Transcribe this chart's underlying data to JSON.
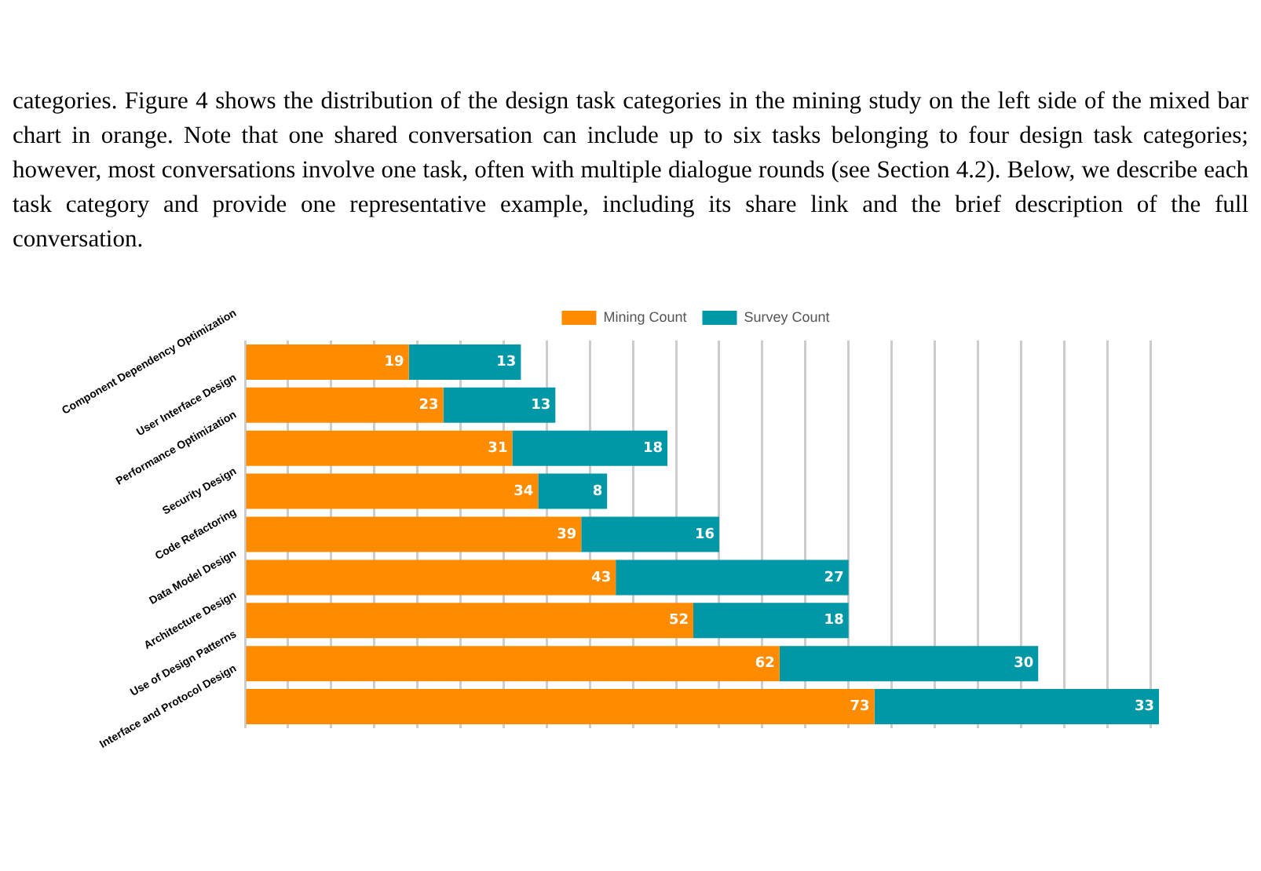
{
  "chart_data": {
    "type": "bar",
    "orientation": "horizontal",
    "stacked": true,
    "annotations": [
      "categories. Figure 4 shows the distribution of the design task categories in the mining study on the left side of the mixed bar chart in orange. Note that one shared conversation can include up to six tasks belonging to four design task categories; however, most conversations involve one task, often with multiple dialogue rounds (see Section 4.2). Below, we describe each task category and provide one representative example, including its share link and the brief description of the full conversation."
    ],
    "categories": [
      "Component Dependency Optimization",
      "User Interface Design",
      "Performance Optimization",
      "Security Design",
      "Code Refactoring",
      "Data Model Design",
      "Architecture Design",
      "Use of Design Patterns",
      "Interface and Protocol Design"
    ],
    "series": [
      {
        "name": "Mining Count",
        "color": "#ff8c00",
        "values": [
          19,
          23,
          31,
          34,
          39,
          43,
          52,
          62,
          73
        ]
      },
      {
        "name": "Survey Count",
        "color": "#0097a7",
        "values": [
          13,
          13,
          18,
          8,
          16,
          27,
          18,
          30,
          33
        ]
      }
    ],
    "xlim": [
      0,
      106
    ],
    "xticks": [
      {
        "value": 0,
        "label": null
      },
      {
        "value": 5,
        "label": null
      },
      {
        "value": 10,
        "label": null
      },
      {
        "value": 15,
        "label": null
      },
      {
        "value": 20,
        "label": null
      },
      {
        "value": 25,
        "label": null
      },
      {
        "value": 30,
        "label": null
      },
      {
        "value": 35,
        "label": null
      },
      {
        "value": 40,
        "label": null
      },
      {
        "value": 45,
        "label": null
      },
      {
        "value": 50,
        "label": null
      },
      {
        "value": 55,
        "label": null
      },
      {
        "value": 60,
        "label": null
      },
      {
        "value": 65,
        "label": null
      },
      {
        "value": 70,
        "label": null
      },
      {
        "value": 75,
        "label": null
      },
      {
        "value": 80,
        "label": null
      },
      {
        "value": 85,
        "label": null
      },
      {
        "value": 90,
        "label": null
      },
      {
        "value": 95,
        "label": null
      },
      {
        "value": 100,
        "label": null
      },
      {
        "value": 105,
        "label": null
      }
    ],
    "tick_labels": "y",
    "grid": "x",
    "legend": "top",
    "data_labels": true
  }
}
